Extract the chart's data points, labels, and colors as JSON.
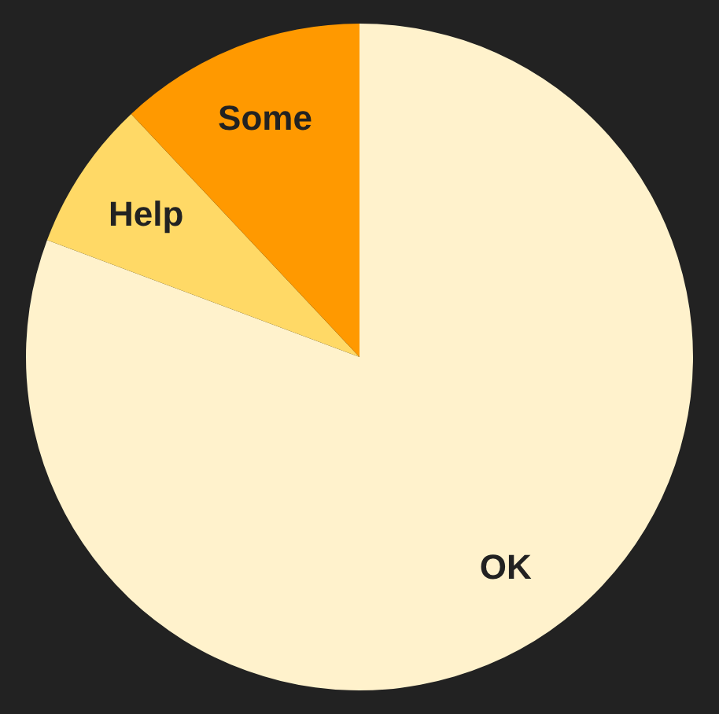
{
  "chart_data": {
    "type": "pie",
    "categories": [
      "OK",
      "Help",
      "Some"
    ],
    "values": [
      80.7,
      7.3,
      12
    ],
    "colors": [
      "#fff2cc",
      "#ffd966",
      "#ff9900"
    ]
  }
}
